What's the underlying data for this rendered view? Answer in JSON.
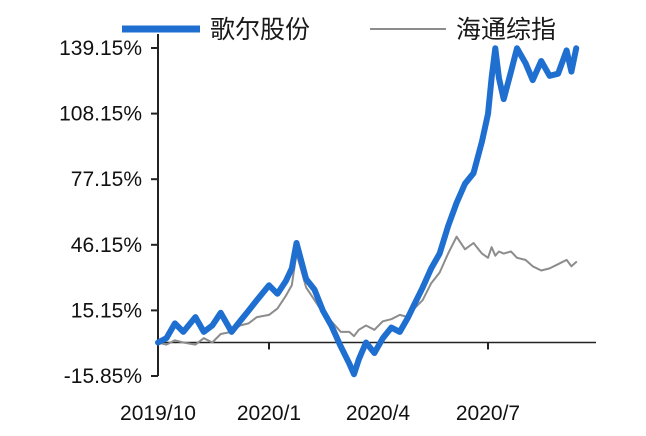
{
  "chart_data": {
    "type": "line",
    "title": "",
    "xlabel": "",
    "ylabel": "",
    "x_ticks": [
      "2019/10",
      "2020/1",
      "2020/4",
      "2020/7"
    ],
    "y_ticks": [
      "139.15%",
      "108.15%",
      "77.15%",
      "46.15%",
      "15.15%",
      "-15.85%"
    ],
    "y_tick_values": [
      139.15,
      108.15,
      77.15,
      46.15,
      15.15,
      -15.85
    ],
    "ylim": [
      -15.85,
      139.15
    ],
    "x_range": [
      "2019/10",
      "2020/9"
    ],
    "legend_position": "top",
    "grid": false,
    "series": [
      {
        "name": "歌尔股份",
        "color": "#1f6fd1",
        "points": [
          [
            "2019/10/01",
            0
          ],
          [
            "2019/10/08",
            2
          ],
          [
            "2019/10/15",
            9
          ],
          [
            "2019/10/22",
            5
          ],
          [
            "2019/11/01",
            12
          ],
          [
            "2019/11/08",
            5
          ],
          [
            "2019/11/15",
            8
          ],
          [
            "2019/11/22",
            14
          ],
          [
            "2019/12/01",
            5
          ],
          [
            "2019/12/08",
            10
          ],
          [
            "2019/12/15",
            15
          ],
          [
            "2019/12/22",
            20
          ],
          [
            "2020/01/01",
            27
          ],
          [
            "2020/01/08",
            23
          ],
          [
            "2020/01/15",
            29
          ],
          [
            "2020/01/20",
            35
          ],
          [
            "2020/01/24",
            47
          ],
          [
            "2020/02/01",
            30
          ],
          [
            "2020/02/08",
            25
          ],
          [
            "2020/02/15",
            15
          ],
          [
            "2020/02/22",
            8
          ],
          [
            "2020/03/01",
            -2
          ],
          [
            "2020/03/08",
            -10
          ],
          [
            "2020/03/12",
            -15
          ],
          [
            "2020/03/16",
            -8
          ],
          [
            "2020/03/22",
            0
          ],
          [
            "2020/03/29",
            -5
          ],
          [
            "2020/04/05",
            2
          ],
          [
            "2020/04/12",
            7
          ],
          [
            "2020/04/19",
            5
          ],
          [
            "2020/04/26",
            12
          ],
          [
            "2020/05/01",
            18
          ],
          [
            "2020/05/08",
            26
          ],
          [
            "2020/05/15",
            35
          ],
          [
            "2020/05/22",
            42
          ],
          [
            "2020/05/29",
            55
          ],
          [
            "2020/06/05",
            66
          ],
          [
            "2020/06/12",
            75
          ],
          [
            "2020/06/19",
            80
          ],
          [
            "2020/06/26",
            95
          ],
          [
            "2020/07/01",
            108
          ],
          [
            "2020/07/04",
            125
          ],
          [
            "2020/07/07",
            139
          ],
          [
            "2020/07/10",
            125
          ],
          [
            "2020/07/14",
            115
          ],
          [
            "2020/07/20",
            128
          ],
          [
            "2020/07/25",
            139
          ],
          [
            "2020/08/01",
            132
          ],
          [
            "2020/08/07",
            124
          ],
          [
            "2020/08/14",
            133
          ],
          [
            "2020/08/21",
            126
          ],
          [
            "2020/08/28",
            127
          ],
          [
            "2020/09/04",
            138
          ],
          [
            "2020/09/08",
            128
          ],
          [
            "2020/09/12",
            139
          ]
        ]
      },
      {
        "name": "海通综指",
        "color": "#8c8c8c",
        "points": [
          [
            "2019/10/01",
            0
          ],
          [
            "2019/10/08",
            -1
          ],
          [
            "2019/10/15",
            1
          ],
          [
            "2019/10/22",
            0
          ],
          [
            "2019/11/01",
            -1
          ],
          [
            "2019/11/08",
            2
          ],
          [
            "2019/11/15",
            0
          ],
          [
            "2019/11/22",
            4
          ],
          [
            "2019/12/01",
            5
          ],
          [
            "2019/12/08",
            8
          ],
          [
            "2019/12/15",
            9
          ],
          [
            "2019/12/22",
            12
          ],
          [
            "2020/01/01",
            13
          ],
          [
            "2020/01/08",
            16
          ],
          [
            "2020/01/15",
            22
          ],
          [
            "2020/01/20",
            27
          ],
          [
            "2020/01/24",
            42
          ],
          [
            "2020/02/01",
            26
          ],
          [
            "2020/02/08",
            20
          ],
          [
            "2020/02/15",
            14
          ],
          [
            "2020/02/22",
            10
          ],
          [
            "2020/03/01",
            5
          ],
          [
            "2020/03/08",
            5
          ],
          [
            "2020/03/12",
            3
          ],
          [
            "2020/03/16",
            6
          ],
          [
            "2020/03/22",
            8
          ],
          [
            "2020/03/29",
            6
          ],
          [
            "2020/04/05",
            10
          ],
          [
            "2020/04/12",
            11
          ],
          [
            "2020/04/19",
            13
          ],
          [
            "2020/04/26",
            12
          ],
          [
            "2020/05/01",
            16
          ],
          [
            "2020/05/08",
            20
          ],
          [
            "2020/05/15",
            28
          ],
          [
            "2020/05/22",
            33
          ],
          [
            "2020/05/29",
            42
          ],
          [
            "2020/06/05",
            50
          ],
          [
            "2020/06/12",
            44
          ],
          [
            "2020/06/19",
            47
          ],
          [
            "2020/06/26",
            42
          ],
          [
            "2020/07/01",
            40
          ],
          [
            "2020/07/04",
            45
          ],
          [
            "2020/07/07",
            41
          ],
          [
            "2020/07/10",
            43
          ],
          [
            "2020/07/14",
            42
          ],
          [
            "2020/07/20",
            43
          ],
          [
            "2020/07/25",
            40
          ],
          [
            "2020/08/01",
            39
          ],
          [
            "2020/08/07",
            36
          ],
          [
            "2020/08/14",
            34
          ],
          [
            "2020/08/21",
            35
          ],
          [
            "2020/08/28",
            37
          ],
          [
            "2020/09/04",
            39
          ],
          [
            "2020/09/08",
            36
          ],
          [
            "2020/09/12",
            38
          ]
        ]
      }
    ]
  }
}
